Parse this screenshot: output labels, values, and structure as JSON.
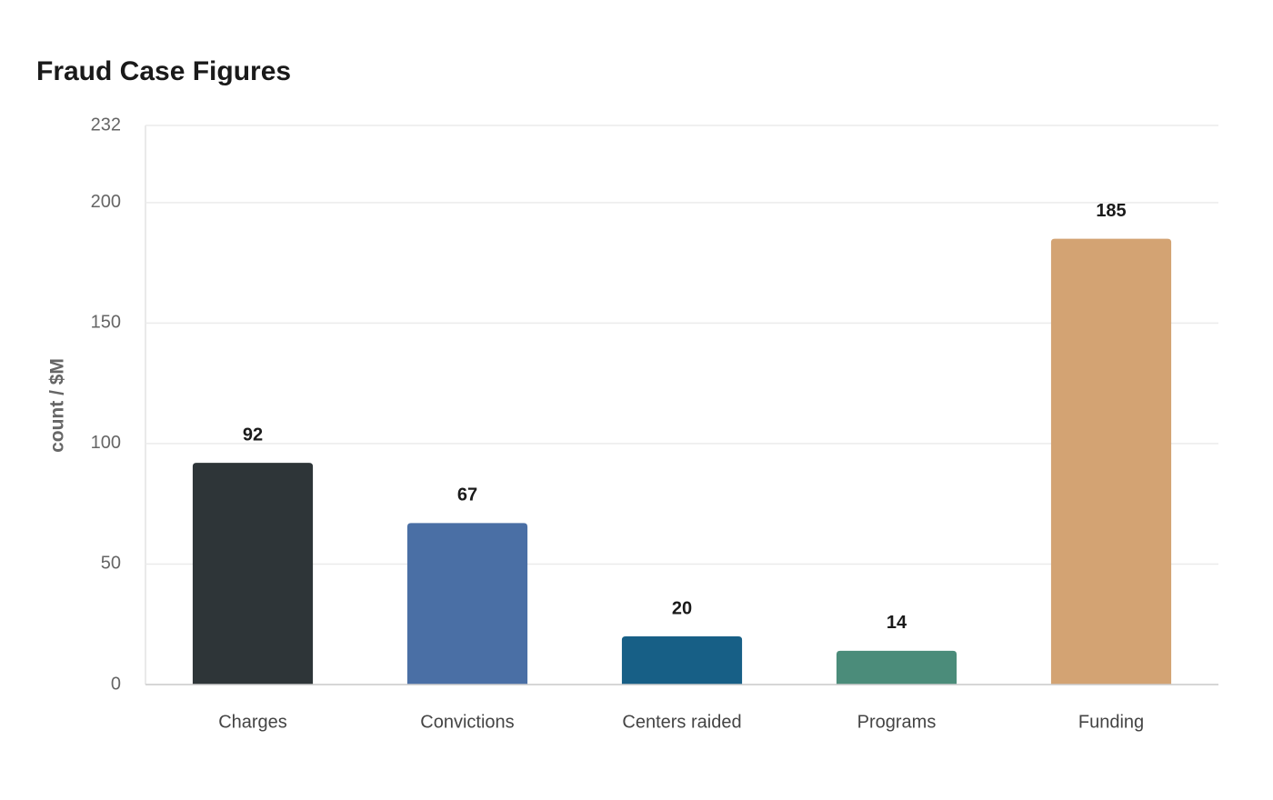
{
  "chart_data": {
    "type": "bar",
    "title": "Fraud Case Figures",
    "y_label": "count / $M",
    "categories": [
      "Charges",
      "Convictions",
      "Centers raided",
      "Programs",
      "Funding"
    ],
    "values": [
      92,
      67,
      20,
      14,
      185
    ],
    "colors": [
      "#2e3538",
      "#4a6fa5",
      "#175f86",
      "#4b8c7a",
      "#d3a373"
    ],
    "ylim": [
      0,
      232
    ],
    "yticks": [
      0,
      50,
      100,
      150,
      200,
      232
    ],
    "grid": true
  }
}
